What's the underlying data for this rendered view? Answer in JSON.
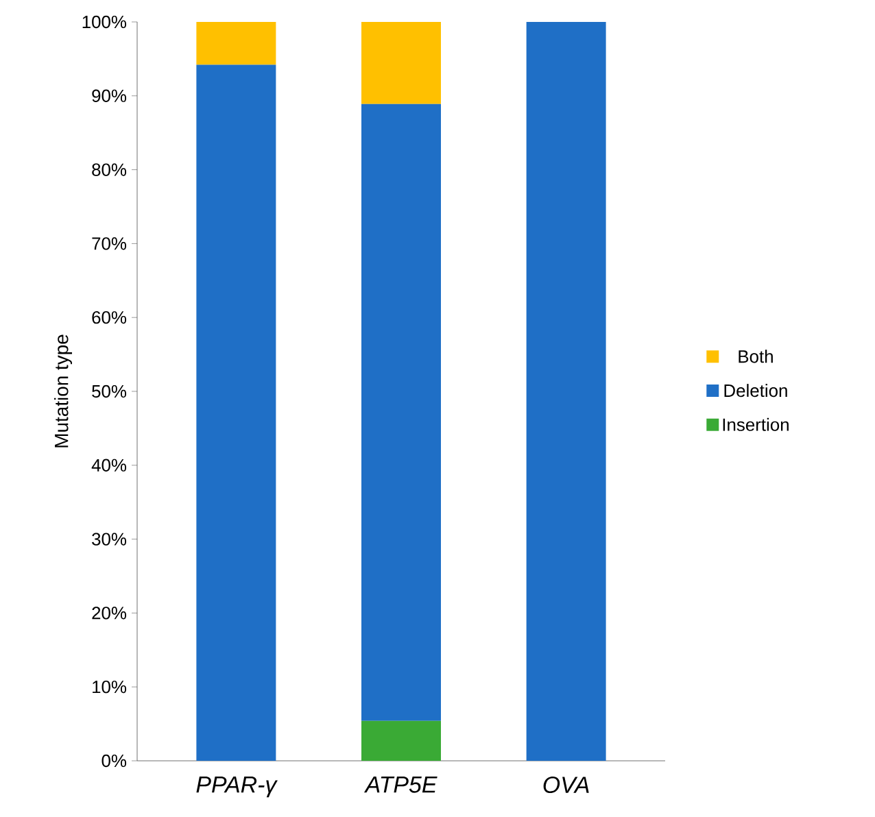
{
  "chart_data": {
    "type": "bar",
    "stacked": true,
    "ylabel": "Mutation type",
    "categories": [
      "PPAR-γ",
      "ATP5E",
      "OVA"
    ],
    "series": [
      {
        "name": "Insertion",
        "color": "#3aaa35",
        "values": [
          0,
          5.4,
          0
        ]
      },
      {
        "name": "Deletion",
        "color": "#1f6fc6",
        "values": [
          94.2,
          83.5,
          100
        ]
      },
      {
        "name": "Both",
        "color": "#ffc000",
        "values": [
          5.8,
          11.1,
          0
        ]
      }
    ],
    "ylim": [
      0,
      100
    ],
    "yticks": [
      {
        "value": 0,
        "label": "0%"
      },
      {
        "value": 10,
        "label": "10%"
      },
      {
        "value": 20,
        "label": "20%"
      },
      {
        "value": 30,
        "label": "30%"
      },
      {
        "value": 40,
        "label": "40%"
      },
      {
        "value": 50,
        "label": "50%"
      },
      {
        "value": 60,
        "label": "60%"
      },
      {
        "value": 70,
        "label": "70%"
      },
      {
        "value": 80,
        "label": "80%"
      },
      {
        "value": 90,
        "label": "90%"
      },
      {
        "value": 100,
        "label": "100%"
      }
    ],
    "legend": "right"
  }
}
